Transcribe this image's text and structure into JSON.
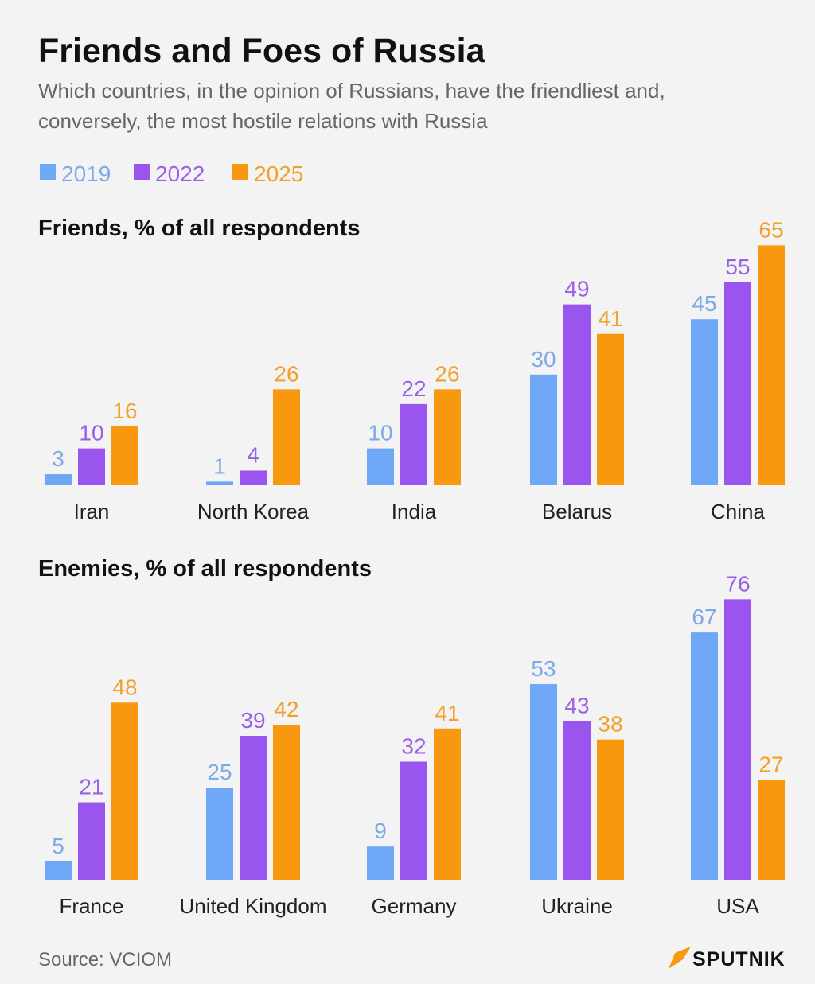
{
  "title": "Friends and Foes of Russia",
  "subtitle_lines": [
    "Which countries, in the opinion of Russians, have the friendliest and,",
    "conversely, the most hostile relations with Russia"
  ],
  "source": "Source: VCIOM",
  "logo": "SPUTNIK",
  "colors": {
    "2019": "#6fa7f7",
    "2022": "#9b55ef",
    "2025": "#f7980f"
  },
  "label_colors": {
    "2019": "#7fa9e8",
    "2022": "#9a5fe6",
    "2025": "#f0a12a"
  },
  "chart_data": [
    {
      "type": "bar",
      "title": "Friends, % of all respondents",
      "categories": [
        "Iran",
        "North Korea",
        "India",
        "Belarus",
        "China"
      ],
      "series": [
        {
          "name": "2019",
          "values": [
            3,
            1,
            10,
            30,
            45
          ]
        },
        {
          "name": "2022",
          "values": [
            10,
            4,
            22,
            49,
            55
          ]
        },
        {
          "name": "2025",
          "values": [
            16,
            26,
            26,
            41,
            65
          ]
        }
      ],
      "legend": "top-left",
      "grid": false
    },
    {
      "type": "bar",
      "title": "Enemies, % of all respondents",
      "categories": [
        "France",
        "United Kingdom",
        "Germany",
        "Ukraine",
        "USA"
      ],
      "series": [
        {
          "name": "2019",
          "values": [
            5,
            25,
            9,
            53,
            67
          ]
        },
        {
          "name": "2022",
          "values": [
            21,
            39,
            32,
            43,
            76
          ]
        },
        {
          "name": "2025",
          "values": [
            48,
            42,
            41,
            38,
            27
          ]
        }
      ],
      "legend": "top-left",
      "grid": false
    }
  ]
}
